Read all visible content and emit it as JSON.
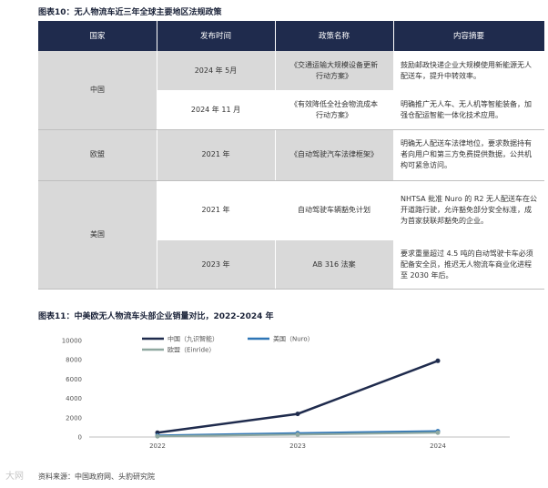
{
  "fig10": {
    "title": "图表10：无人物流车近三年全球主要地区法规政策"
  },
  "table": {
    "headers": [
      "国家",
      "发布时间",
      "政策名称",
      "内容摘要"
    ],
    "groups": [
      {
        "country": "中国",
        "rows": [
          {
            "date": "2024 年 5月",
            "policy": "《交通运输大规模设备更新行动方案》",
            "summary": "鼓励邮政快递企业大规模使用新能源无人配送车，提升中转效率。"
          },
          {
            "date": "2024 年 11 月",
            "policy": "《有效降低全社会物流成本行动方案》",
            "summary": "明确推广无人车、无人机等智能装备，加强仓配运智能一体化技术应用。"
          }
        ]
      },
      {
        "country": "欧盟",
        "rows": [
          {
            "date": "2021 年",
            "policy": "《自动驾驶汽车法律框架》",
            "summary": "明确无人配送车法律地位，要求数据持有者向用户和第三方免费提供数据，公共机构可紧急访问。"
          }
        ]
      },
      {
        "country": "美国",
        "rows": [
          {
            "date": "2021 年",
            "policy": "自动驾驶车辆豁免计划",
            "summary": "NHTSA 批准 Nuro 的 R2 无人配送车在公开道路行驶，允许豁免部分安全标准，成为首家获联邦豁免的企业。"
          },
          {
            "date": "2023 年",
            "policy": "AB 316 法案",
            "summary": "要求重量超过 4.5 吨的自动驾驶卡车必须配备安全员，推迟无人物流车商业化进程至 2030 年后。"
          }
        ]
      }
    ]
  },
  "fig11": {
    "title": "图表11：中美欧无人物流车头部企业销量对比，2022-2024 年"
  },
  "chart_data": {
    "type": "line",
    "title": "",
    "xlabel": "",
    "ylabel": "",
    "x": [
      "2022",
      "2023",
      "2024"
    ],
    "ylim": [
      0,
      10000
    ],
    "yticks": [
      "0",
      "2000",
      "4000",
      "6000",
      "8000",
      "10000"
    ],
    "grid": false,
    "legend": "top-left",
    "series": [
      {
        "name": "中国（九识智能）",
        "values": [
          450,
          2400,
          7900
        ],
        "color": "#1f2b4d"
      },
      {
        "name": "美国（Nuro）",
        "values": [
          150,
          400,
          600
        ],
        "color": "#2e75b6"
      },
      {
        "name": "欧盟（Einride）",
        "values": [
          80,
          250,
          450
        ],
        "color": "#8fa8a0"
      }
    ]
  },
  "source": {
    "text": "资料来源：中国政府网、头豹研究院"
  },
  "watermark": {
    "corner": "大网"
  }
}
